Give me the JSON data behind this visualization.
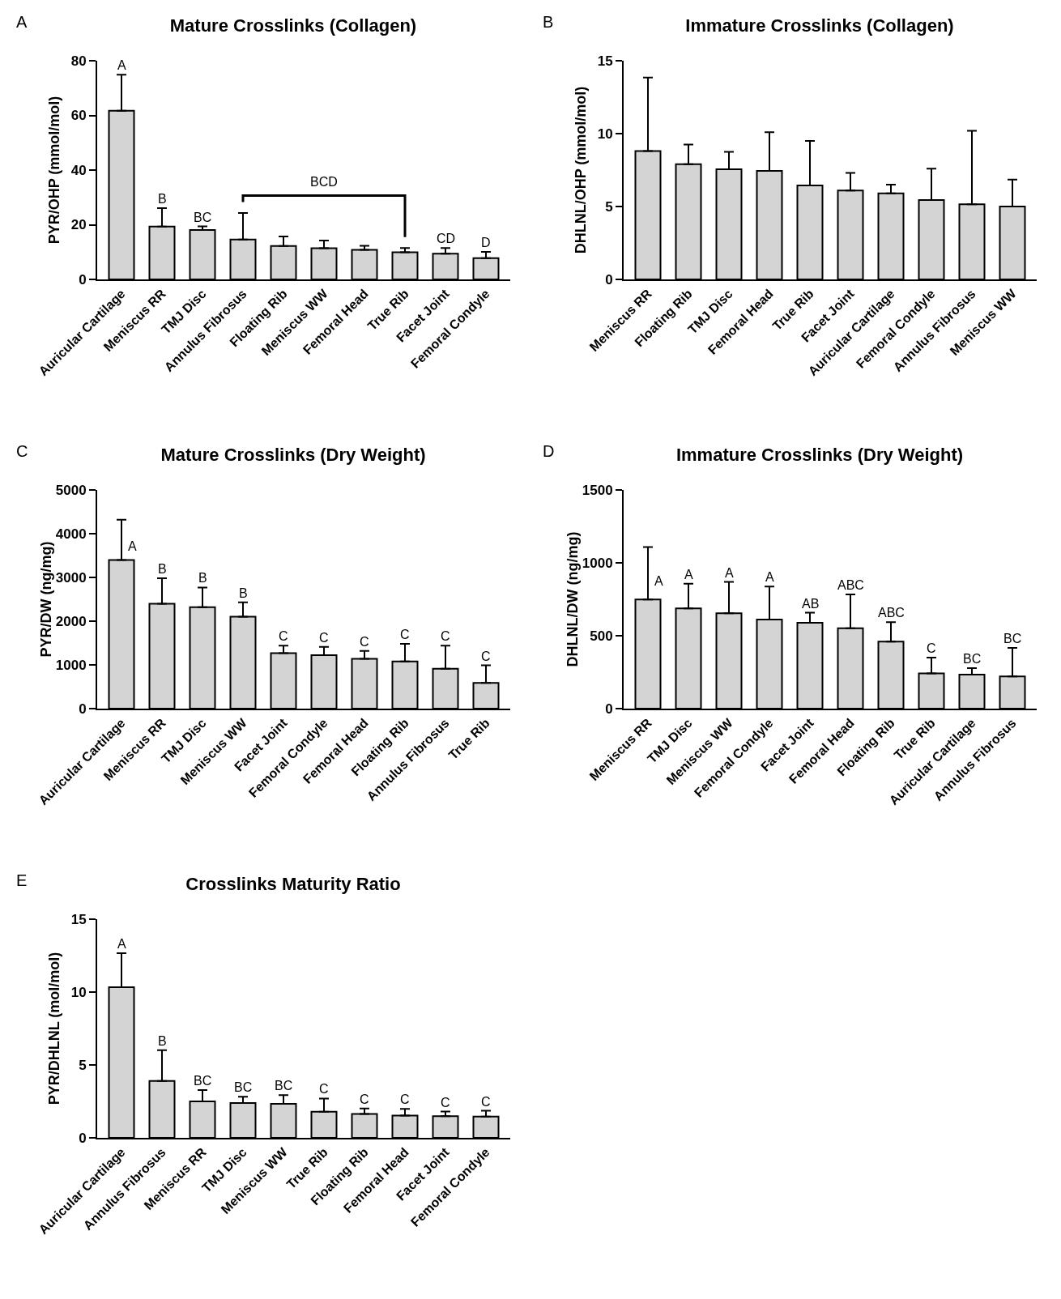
{
  "chart_data": [
    {
      "type": "bar",
      "title": "Mature Crosslinks (Collagen)",
      "ylabel": "PYR/OHP (mmol/mol)",
      "categories": [
        "Auricular Cartilage",
        "Meniscus RR",
        "TMJ Disc",
        "Annulus Fibrosus",
        "Floating Rib",
        "Meniscus WW",
        "Femoral Head",
        "True Rib",
        "Facet Joint",
        "Femoral Condyle"
      ],
      "series": [
        {
          "color": "#d4d4d4",
          "values": [
            61.7,
            19.3,
            18.1,
            14.6,
            12.2,
            11.4,
            10.8,
            9.9,
            9.4,
            7.8
          ],
          "errors": [
            [
              61.7,
              74.9
            ],
            [
              19.3,
              26.1
            ],
            [
              18.1,
              19.4
            ],
            [
              14.6,
              24.3
            ],
            [
              12.2,
              15.7
            ],
            [
              11.4,
              14.2
            ],
            [
              10.8,
              12.3
            ],
            [
              9.9,
              11.5
            ],
            [
              9.4,
              11.5
            ],
            [
              7.8,
              10.1
            ]
          ],
          "value_labels": [
            "A",
            "B",
            "BC",
            null,
            null,
            null,
            null,
            null,
            "CD",
            "D"
          ]
        }
      ],
      "ylim": [
        0,
        80
      ],
      "yticks": [
        0,
        20,
        40,
        60,
        80
      ],
      "grid": false,
      "annotations": [
        "A",
        "BCD"
      ]
    },
    {
      "type": "bar",
      "title": "Immature Crosslinks (Collagen)",
      "ylabel": "DHLNL/OHP (mmol/mol)",
      "categories": [
        "Meniscus RR",
        "Floating Rib",
        "TMJ Disc",
        "Femoral Head",
        "True Rib",
        "Facet Joint",
        "Auricular Cartilage",
        "Femoral Condyle",
        "Annulus Fibrosus",
        "Meniscus WW"
      ],
      "series": [
        {
          "color": "#d4d4d4",
          "values": [
            8.8,
            7.9,
            7.55,
            7.45,
            6.45,
            6.1,
            5.9,
            5.45,
            5.15,
            5.0
          ],
          "errors": [
            [
              8.8,
              13.85
            ],
            [
              7.9,
              9.25
            ],
            [
              7.55,
              8.75
            ],
            [
              7.45,
              10.1
            ],
            [
              6.45,
              9.5
            ],
            [
              6.1,
              7.3
            ],
            [
              5.9,
              6.5
            ],
            [
              5.45,
              7.6
            ],
            [
              5.15,
              10.2
            ],
            [
              5.0,
              6.85
            ]
          ]
        }
      ],
      "ylim": [
        0,
        15
      ],
      "yticks": [
        0,
        5,
        10,
        15
      ],
      "grid": false,
      "annotations": [
        "B"
      ]
    },
    {
      "type": "bar",
      "title": "Mature Crosslinks (Dry Weight)",
      "ylabel": "PYR/DW (ng/mg)",
      "categories": [
        "Auricular Cartilage",
        "Meniscus RR",
        "TMJ Disc",
        "Meniscus WW",
        "Facet Joint",
        "Femoral Condyle",
        "Femoral Head",
        "Floating Rib",
        "Annulus Fibrosus",
        "True Rib"
      ],
      "series": [
        {
          "color": "#d4d4d4",
          "values": [
            3400,
            2400,
            2320,
            2100,
            1270,
            1220,
            1140,
            1080,
            910,
            590
          ],
          "errors": [
            [
              3400,
              4320
            ],
            [
              2400,
              2980
            ],
            [
              2320,
              2770
            ],
            [
              2100,
              2430
            ],
            [
              1270,
              1440
            ],
            [
              1220,
              1410
            ],
            [
              1140,
              1320
            ],
            [
              1080,
              1480
            ],
            [
              910,
              1440
            ],
            [
              590,
              990
            ]
          ],
          "value_labels": [
            "A",
            "B",
            "B",
            "B",
            "C",
            "C",
            "C",
            "C",
            "C",
            "C"
          ]
        }
      ],
      "ylim": [
        0,
        5000
      ],
      "yticks": [
        0,
        1000,
        2000,
        3000,
        4000,
        5000
      ],
      "grid": false,
      "annotations": [
        "C"
      ]
    },
    {
      "type": "bar",
      "title": "Immature Crosslinks (Dry Weight)",
      "ylabel": "DHLNL/DW (ng/mg)",
      "categories": [
        "Meniscus RR",
        "TMJ Disc",
        "Meniscus WW",
        "Femoral Condyle",
        "Facet Joint",
        "Femoral Head",
        "Floating Rib",
        "True Rib",
        "Auricular Cartilage",
        "Annulus Fibrosus"
      ],
      "series": [
        {
          "color": "#d4d4d4",
          "values": [
            748,
            688,
            654,
            611,
            589,
            551,
            460,
            241,
            233,
            221
          ],
          "errors": [
            [
              748,
              1108
            ],
            [
              688,
              857
            ],
            [
              654,
              869
            ],
            [
              611,
              837
            ],
            [
              589,
              658
            ],
            [
              551,
              784
            ],
            [
              460,
              593
            ],
            [
              241,
              350
            ],
            [
              233,
              278
            ],
            [
              221,
              416
            ]
          ],
          "value_labels": [
            "A",
            "A",
            "A",
            "A",
            "AB",
            "ABC",
            "ABC",
            "C",
            "BC",
            "BC"
          ]
        }
      ],
      "ylim": [
        0,
        1500
      ],
      "yticks": [
        0,
        500,
        1000,
        1500
      ],
      "grid": false,
      "annotations": [
        "D"
      ]
    },
    {
      "type": "bar",
      "title": "Crosslinks Maturity Ratio",
      "ylabel": "PYR/DHLNL (mol/mol)",
      "categories": [
        "Auricular Cartilage",
        "Annulus Fibrosus",
        "Meniscus RR",
        "TMJ Disc",
        "Meniscus WW",
        "True Rib",
        "Floating Rib",
        "Femoral Head",
        "Facet Joint",
        "Femoral Condyle"
      ],
      "series": [
        {
          "color": "#d4d4d4",
          "values": [
            10.33,
            3.9,
            2.5,
            2.39,
            2.33,
            1.79,
            1.64,
            1.53,
            1.48,
            1.46
          ],
          "errors": [
            [
              10.33,
              12.67
            ],
            [
              3.9,
              6.01
            ],
            [
              2.5,
              3.28
            ],
            [
              2.39,
              2.82
            ],
            [
              2.33,
              2.93
            ],
            [
              1.79,
              2.7
            ],
            [
              1.64,
              2.02
            ],
            [
              1.53,
              1.99
            ],
            [
              1.48,
              1.8
            ],
            [
              1.46,
              1.86
            ]
          ],
          "value_labels": [
            "A",
            "B",
            "BC",
            "BC",
            "BC",
            "C",
            "C",
            "C",
            "C",
            "C"
          ]
        }
      ],
      "ylim": [
        0,
        15
      ],
      "yticks": [
        0,
        5,
        10,
        15
      ],
      "grid": false,
      "annotations": [
        "E"
      ]
    }
  ]
}
